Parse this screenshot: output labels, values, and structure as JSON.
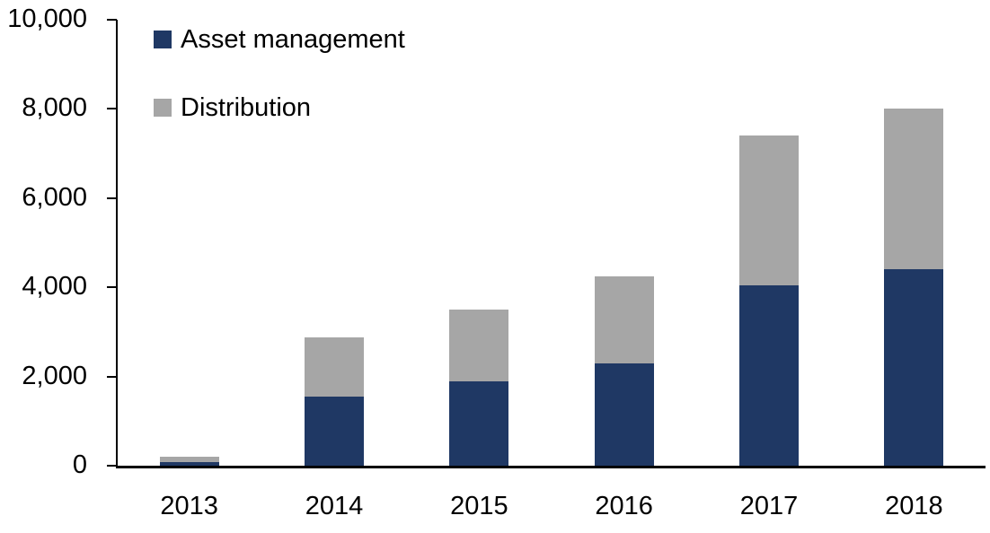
{
  "chart_data": {
    "type": "bar",
    "stacked": true,
    "categories": [
      "2013",
      "2014",
      "2015",
      "2016",
      "2017",
      "2018"
    ],
    "series": [
      {
        "name": "Asset management",
        "color": "#1F3864",
        "values": [
          80,
          1550,
          1900,
          2300,
          4050,
          4400
        ]
      },
      {
        "name": "Distribution",
        "color": "#A6A6A6",
        "values": [
          115,
          1320,
          1600,
          1950,
          3350,
          3600
        ]
      }
    ],
    "ylim": [
      0,
      10000
    ],
    "yticks": [
      0,
      2000,
      4000,
      6000,
      8000,
      10000
    ],
    "ytick_labels": [
      "0",
      "2,000",
      "4,000",
      "6,000",
      "8,000",
      "10,000"
    ],
    "grid": false,
    "legend_position": "top-left",
    "axis_color": "#000000",
    "text_color": "#000000"
  }
}
